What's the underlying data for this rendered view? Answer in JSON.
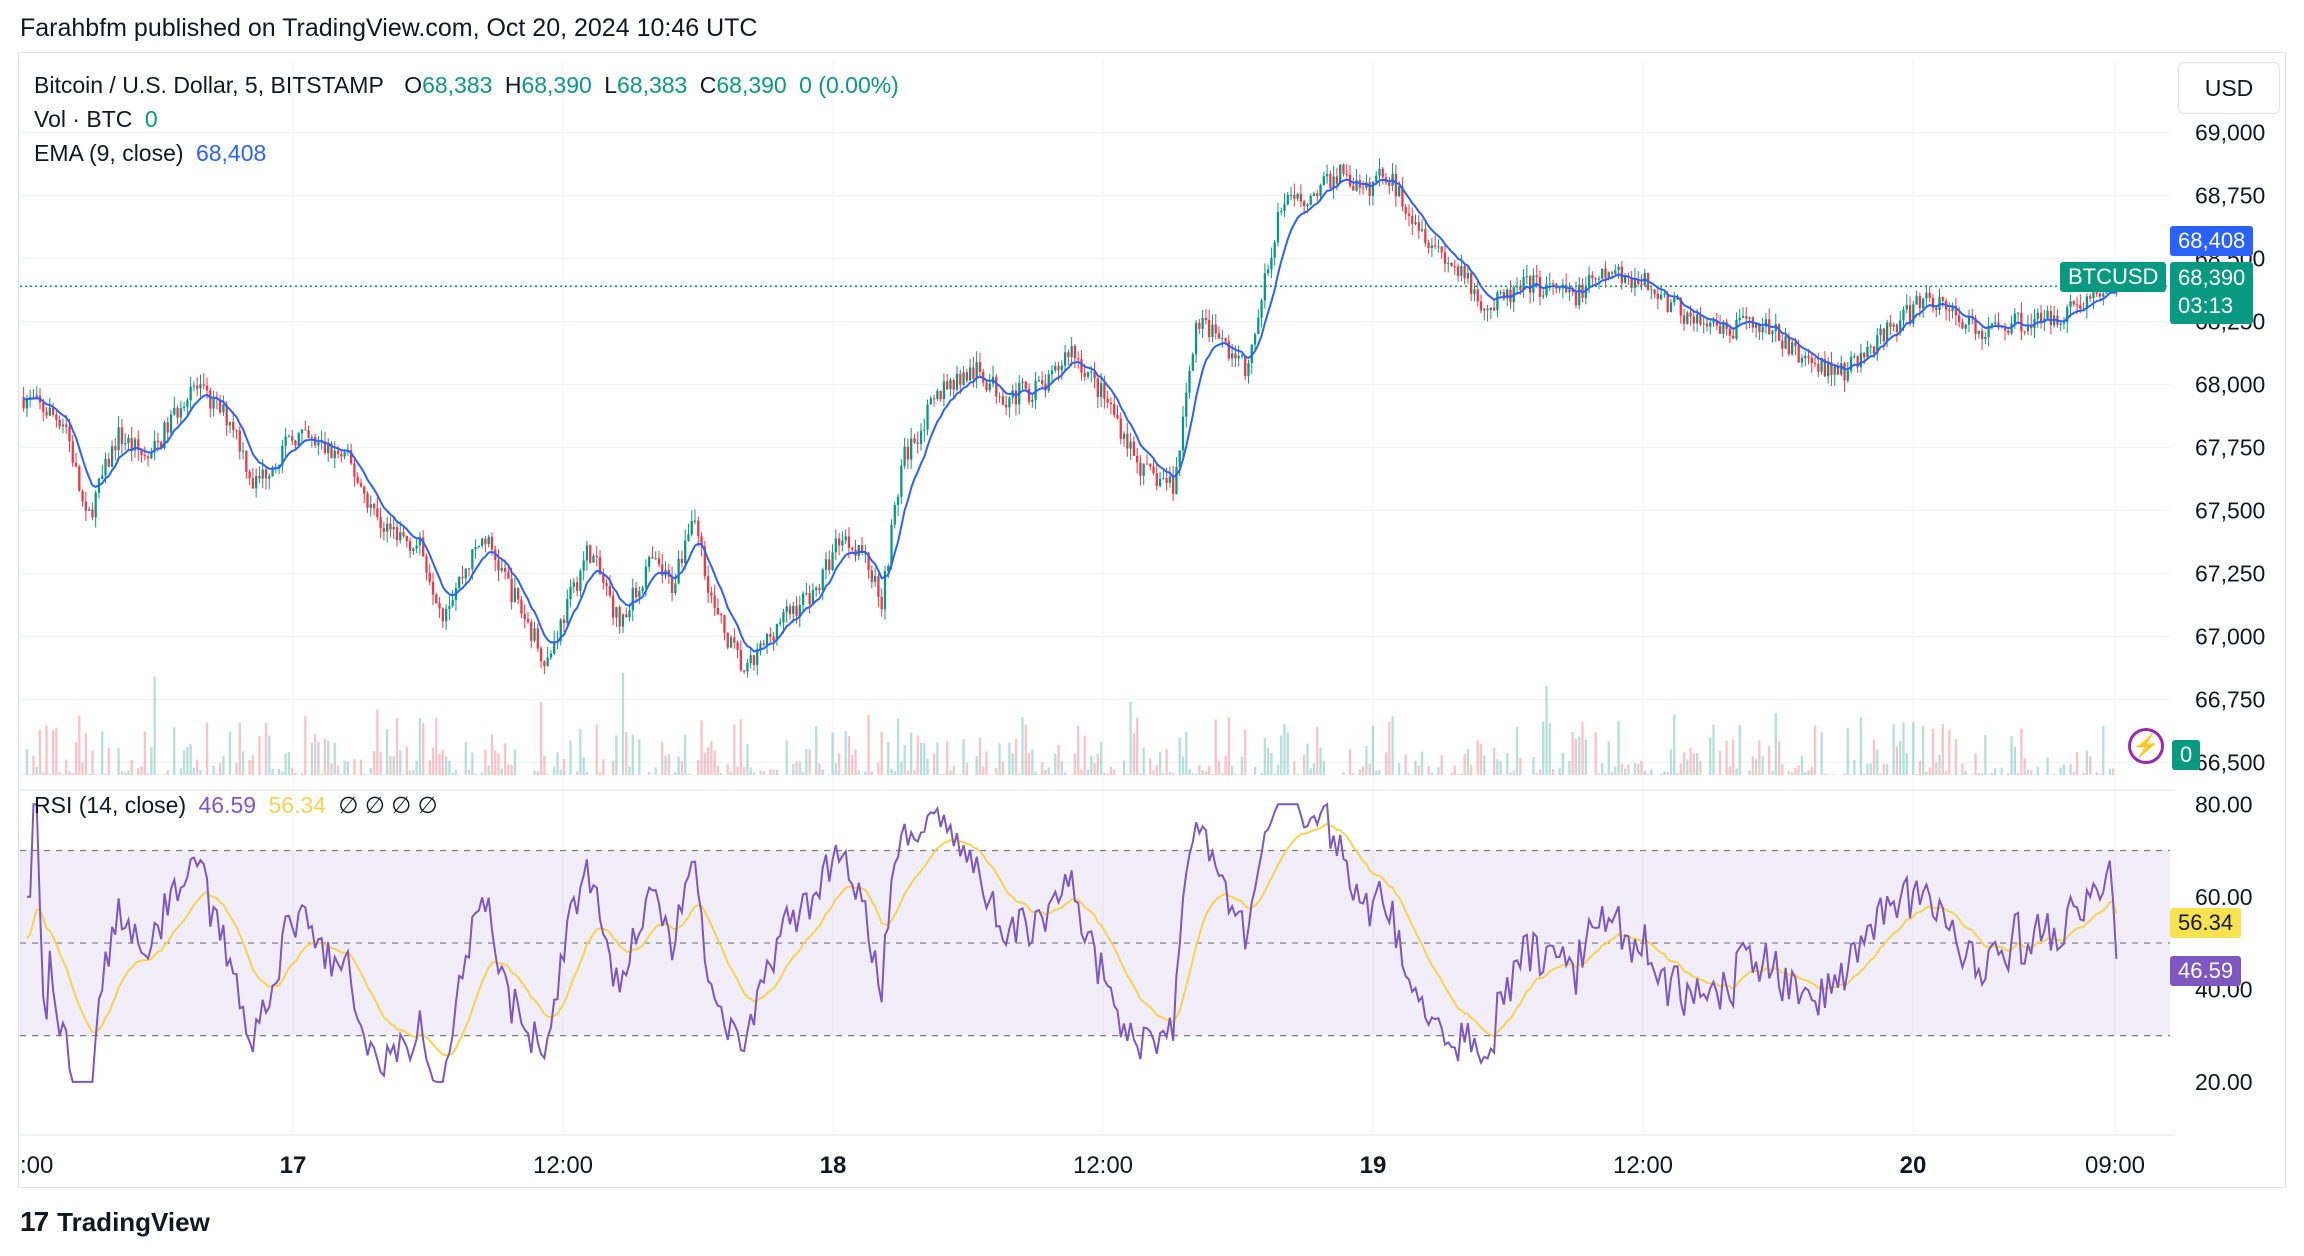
{
  "header": {
    "published": "Farahbfm published on TradingView.com, Oct 20, 2024 10:46 UTC"
  },
  "legend": {
    "symbol": "Bitcoin / U.S. Dollar, 5, BITSTAMP",
    "o_label": "O",
    "o_val": "68,383",
    "h_label": "H",
    "h_val": "68,390",
    "l_label": "L",
    "l_val": "68,383",
    "c_label": "C",
    "c_val": "68,390",
    "change": "0 (0.00%)",
    "vol_label": "Vol · BTC",
    "vol_val": "0",
    "ema_label": "EMA (9, close)",
    "ema_val": "68,408",
    "rsi_label": "RSI (14, close)",
    "rsi_val": "46.59",
    "rsi_ma_val": "56.34",
    "rsi_na": "∅ ∅ ∅ ∅"
  },
  "currency_button": "USD",
  "price_tags": {
    "ema": "68,408",
    "last": "68,390",
    "countdown": "03:13",
    "symbol_tag": "BTCUSD",
    "volume": "0",
    "rsi_ma": "56.34",
    "rsi": "46.59"
  },
  "footer": {
    "brand": "TradingView",
    "logo": "17"
  },
  "colors": {
    "up": "#089981",
    "down": "#f23645",
    "ema": "#2962ff",
    "rsi": "#7e57c2",
    "rsi_ma": "#f7d34f"
  },
  "chart_data": [
    {
      "type": "candlestick",
      "title": "Bitcoin / U.S. Dollar, 5, BITSTAMP",
      "x_ticks": [
        ":00",
        "17",
        "12:00",
        "18",
        "12:00",
        "19",
        "12:00",
        "20",
        "09:00"
      ],
      "y_ticks": [
        "69,000",
        "68,750",
        "68,500",
        "68,250",
        "68,000",
        "67,750",
        "67,500",
        "67,250",
        "67,000",
        "66,750",
        "66,500"
      ],
      "ylim": [
        66450,
        69050
      ],
      "last_price": 68390,
      "close_path": {
        "t": [
          0,
          0.02,
          0.03,
          0.045,
          0.06,
          0.08,
          0.1,
          0.11,
          0.13,
          0.155,
          0.17,
          0.19,
          0.2,
          0.22,
          0.235,
          0.25,
          0.27,
          0.285,
          0.3,
          0.31,
          0.32,
          0.33,
          0.345,
          0.36,
          0.38,
          0.39,
          0.4,
          0.41,
          0.42,
          0.44,
          0.455,
          0.47,
          0.49,
          0.5,
          0.52,
          0.535,
          0.55,
          0.56,
          0.57,
          0.585,
          0.6,
          0.615,
          0.63,
          0.64,
          0.65,
          0.67,
          0.69,
          0.7,
          0.72,
          0.74,
          0.76,
          0.775,
          0.79,
          0.81,
          0.83,
          0.85,
          0.87,
          0.89,
          0.91,
          0.92,
          0.935,
          0.95,
          0.965,
          1.0
        ],
        "price": [
          67950,
          67850,
          67450,
          67800,
          67700,
          68000,
          67850,
          67600,
          67800,
          67700,
          67450,
          67350,
          67100,
          67400,
          67150,
          66900,
          67350,
          67050,
          67300,
          67200,
          67500,
          67100,
          66850,
          67050,
          67200,
          67400,
          67350,
          67150,
          67700,
          68000,
          68050,
          67950,
          68000,
          68150,
          67900,
          67650,
          67600,
          68250,
          68200,
          68050,
          68700,
          68750,
          68850,
          68750,
          68850,
          68600,
          68400,
          68300,
          68400,
          68350,
          68450,
          68400,
          68300,
          68200,
          68250,
          68100,
          68050,
          68200,
          68350,
          68300,
          68200,
          68250,
          68250,
          68390
        ]
      }
    },
    {
      "type": "line",
      "title": "RSI (14, close)",
      "y_ticks": [
        "80.00",
        "60.00",
        "40.00",
        "20.00"
      ],
      "ylim": [
        15,
        82
      ],
      "bands": [
        30,
        50,
        70
      ],
      "series": [
        {
          "name": "RSI",
          "last": 46.59
        },
        {
          "name": "RSI MA",
          "last": 56.34
        }
      ]
    }
  ]
}
